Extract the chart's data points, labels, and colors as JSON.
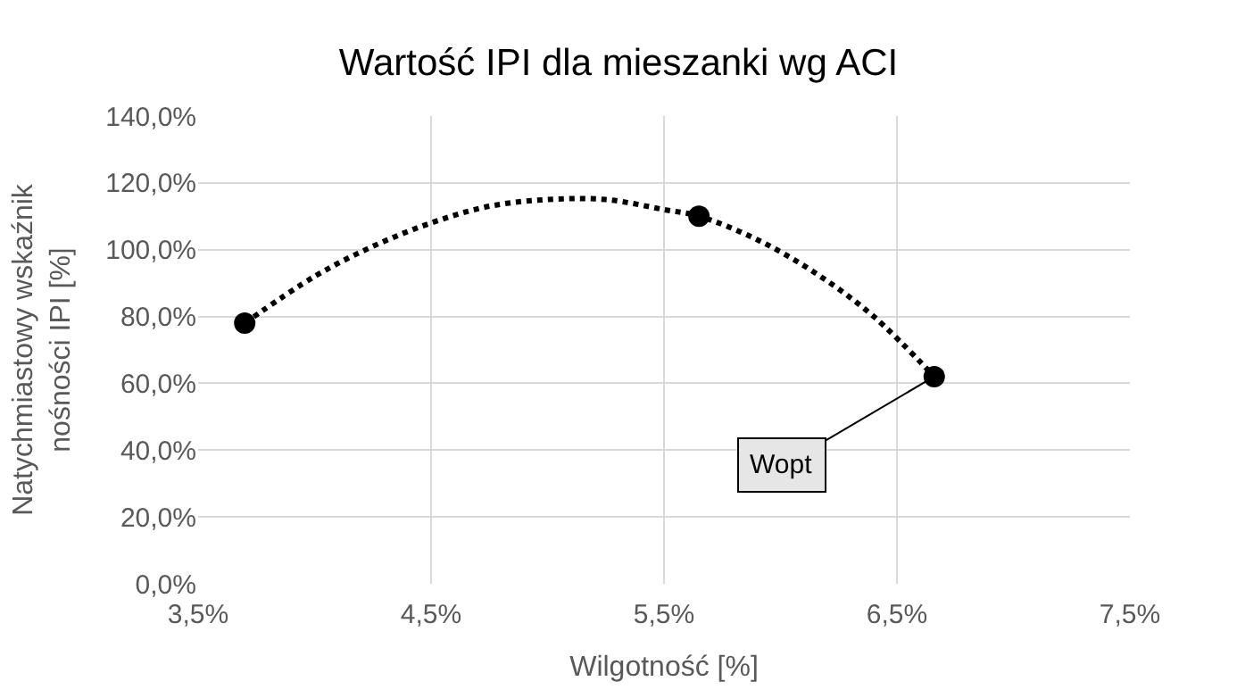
{
  "chart_data": {
    "type": "scatter",
    "title": "Wartość IPI dla mieszanki wg ACI",
    "xlabel": "Wilgotność [%]",
    "ylabel": "Natychmiastowy wskaźnik nośności IPI [%]",
    "series": [
      {
        "type": "line",
        "line_style": "dotted",
        "marker": "none",
        "color": "#000000",
        "x": [
          3.7,
          4.0,
          4.25,
          4.5,
          4.75,
          5.0,
          5.25,
          5.5,
          5.65,
          5.9,
          6.15,
          6.4,
          6.66
        ],
        "values": [
          78,
          92,
          101,
          108,
          113,
          115,
          115,
          112,
          110,
          103,
          93,
          80,
          62
        ]
      },
      {
        "marker": "circle",
        "color": "#000000",
        "x": [
          3.7,
          5.65,
          6.66
        ],
        "values": [
          78,
          110,
          62
        ]
      }
    ],
    "xlim": [
      3.5,
      7.5
    ],
    "xticks": [
      {
        "value": 3.5,
        "label": "3,5%"
      },
      {
        "value": 4.5,
        "label": "4,5%"
      },
      {
        "value": 5.5,
        "label": "5,5%"
      },
      {
        "value": 6.5,
        "label": "6,5%"
      },
      {
        "value": 7.5,
        "label": "7,5%"
      }
    ],
    "ylim": [
      0,
      140
    ],
    "yticks": [
      {
        "value": 0,
        "label": "0,0%"
      },
      {
        "value": 20,
        "label": "20,0%"
      },
      {
        "value": 40,
        "label": "40,0%"
      },
      {
        "value": 60,
        "label": "60,0%"
      },
      {
        "value": 80,
        "label": "80,0%"
      },
      {
        "value": 100,
        "label": "100,0%"
      },
      {
        "value": 120,
        "label": "120,0%"
      },
      {
        "value": 140,
        "label": "140,0%"
      }
    ],
    "grid": true,
    "annotations": [
      {
        "text": "Wopt",
        "x": 6.66,
        "y": 62
      }
    ]
  }
}
